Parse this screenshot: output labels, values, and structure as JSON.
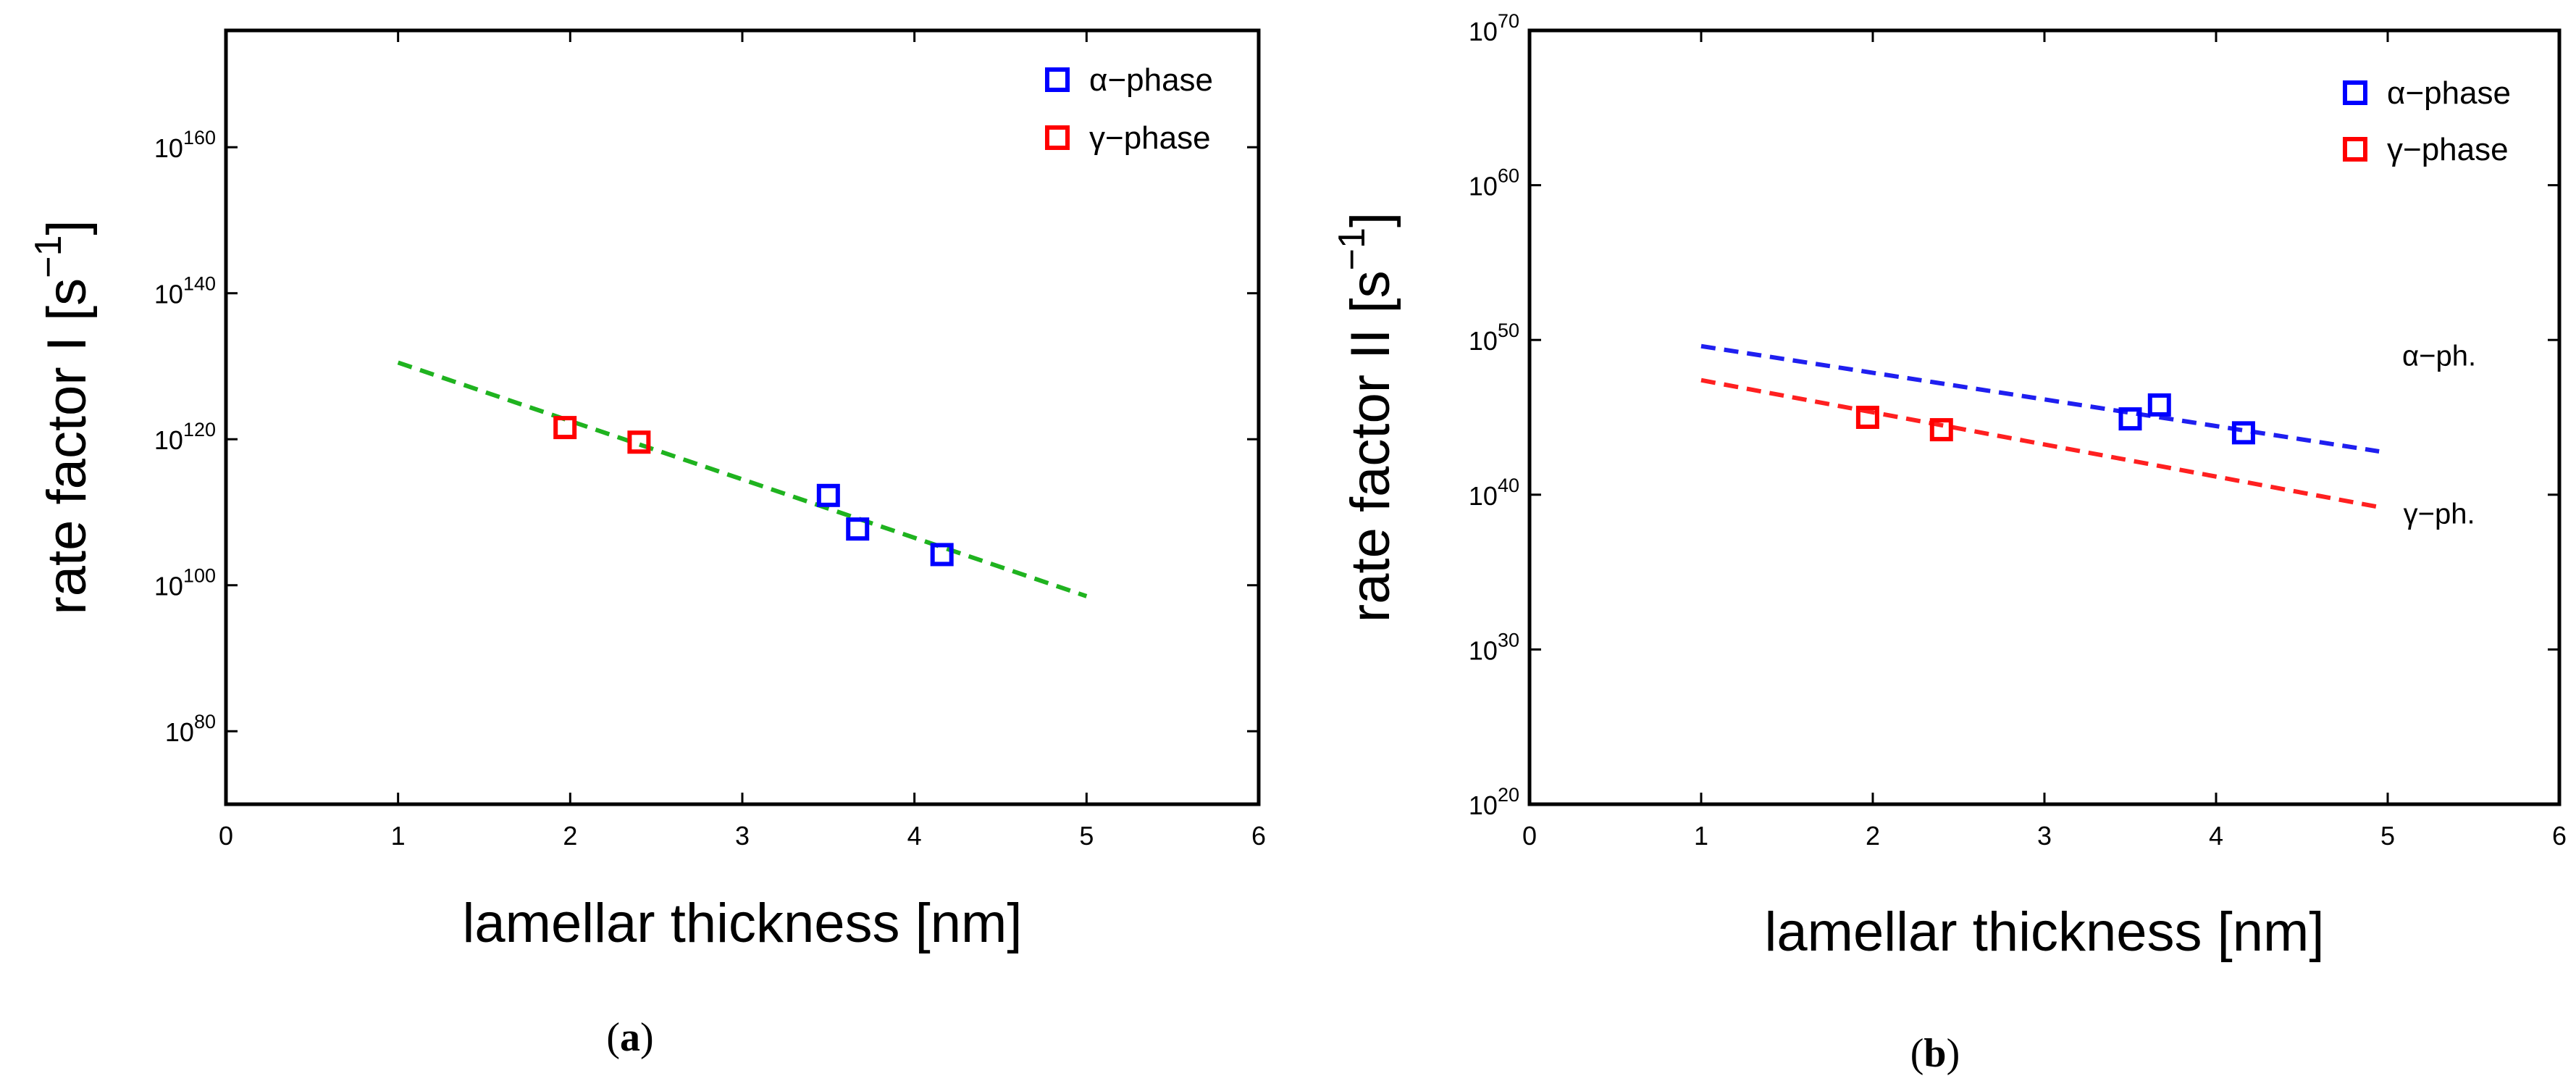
{
  "chart_data": [
    {
      "type": "scatter",
      "panel_label": "a",
      "xlabel": "lamellar thickness [nm]",
      "ylabel": "rate factor I [s",
      "ylabel_sup": "−1",
      "ylabel_close": "]",
      "x_ticks": [
        "0",
        "1",
        "2",
        "3",
        "4",
        "5",
        "6"
      ],
      "y_tick_base": "10",
      "y_ticks": [
        "80",
        "100",
        "120",
        "140",
        "160"
      ],
      "xlim": [
        0,
        6
      ],
      "ylim_log10": [
        70,
        176
      ],
      "y_scale": "log",
      "series": [
        {
          "name": "α−phase",
          "color": "#0000ff",
          "marker": "square",
          "x": [
            3.5,
            3.67,
            4.16
          ],
          "log10_y": [
            112.3,
            107.7,
            104.2
          ]
        },
        {
          "name": "γ−phase",
          "color": "#ff0000",
          "marker": "square",
          "x": [
            1.97,
            2.4
          ],
          "log10_y": [
            121.6,
            119.6
          ]
        }
      ],
      "fits": [
        {
          "color": "#1fb31f",
          "style": "dashed",
          "x": [
            1,
            5
          ],
          "log10_y": [
            130.5,
            98.5
          ]
        }
      ],
      "annotations": [],
      "legend_position": "top-right"
    },
    {
      "type": "scatter",
      "panel_label": "b",
      "xlabel": "lamellar thickness [nm]",
      "ylabel": "rate factor II [s",
      "ylabel_sup": "−1",
      "ylabel_close": "]",
      "x_ticks": [
        "0",
        "1",
        "2",
        "3",
        "4",
        "5",
        "6"
      ],
      "y_tick_base": "10",
      "y_ticks": [
        "20",
        "30",
        "40",
        "50",
        "60",
        "70"
      ],
      "xlim": [
        0,
        6
      ],
      "ylim_log10": [
        20,
        70
      ],
      "y_scale": "log",
      "series": [
        {
          "name": "α−phase",
          "color": "#0000ff",
          "marker": "square",
          "x": [
            3.5,
            3.67,
            4.16
          ],
          "log10_y": [
            44.9,
            45.8,
            44.0
          ]
        },
        {
          "name": "γ−phase",
          "color": "#ff0000",
          "marker": "square",
          "x": [
            1.97,
            2.4
          ],
          "log10_y": [
            45.0,
            44.2
          ]
        }
      ],
      "fits": [
        {
          "color": "#1f1ff0",
          "style": "dashed",
          "x": [
            1,
            4.95
          ],
          "log10_y": [
            49.6,
            42.8
          ]
        },
        {
          "color": "#ff2020",
          "style": "dashed",
          "x": [
            1,
            4.95
          ],
          "log10_y": [
            47.4,
            39.2
          ]
        }
      ],
      "annotations": [
        {
          "text": "α−ph.",
          "x": 5.3,
          "log10_y": 49.0
        },
        {
          "text": "γ−ph.",
          "x": 5.3,
          "log10_y": 38.8
        }
      ],
      "legend_position": "top-right"
    }
  ],
  "captions": [
    {
      "open": "(",
      "label": "a",
      "close": ")"
    },
    {
      "open": "(",
      "label": "b",
      "close": ")"
    }
  ]
}
